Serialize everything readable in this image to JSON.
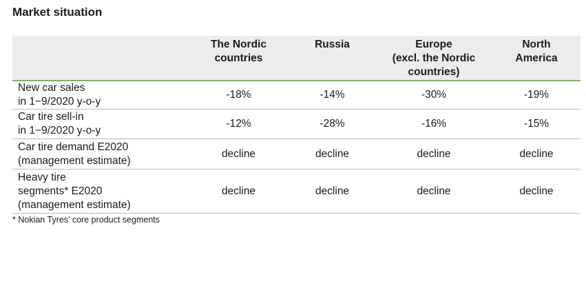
{
  "title": "Market situation",
  "table": {
    "headers": [
      "",
      "The Nordic\ncountries",
      "Russia",
      "Europe\n(excl. the Nordic\ncountries)",
      "North\nAmerica"
    ],
    "rows": [
      {
        "label": "New car sales\nin 1−9/2020 y-o-y",
        "values": [
          "-18%",
          "-14%",
          "-30%",
          "-19%"
        ]
      },
      {
        "label": "Car tire sell-in\nin 1−9/2020 y-o-y",
        "values": [
          "-12%",
          "-28%",
          "-16%",
          "-15%"
        ]
      },
      {
        "label": "Car tire demand E2020\n(management estimate)",
        "values": [
          "decline",
          "decline",
          "decline",
          "decline"
        ]
      },
      {
        "label": "Heavy tire\nsegments* E2020\n(management estimate)",
        "values": [
          "decline",
          "decline",
          "decline",
          "decline"
        ]
      }
    ]
  },
  "footnote": "* Nokian Tyres’ core product segments"
}
